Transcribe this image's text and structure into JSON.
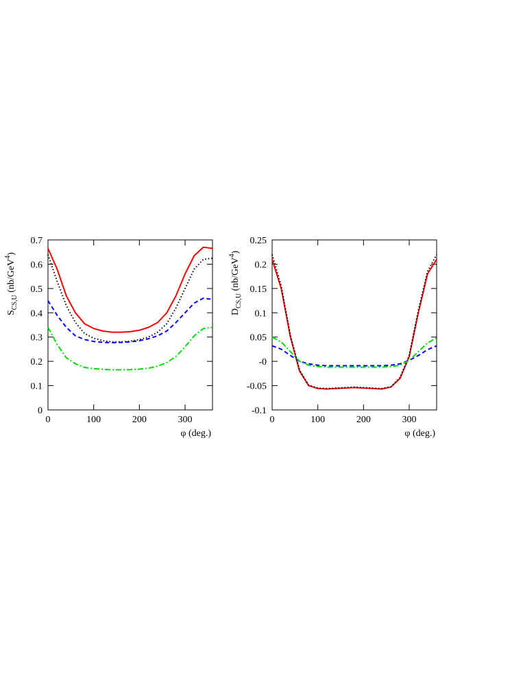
{
  "chart_data": [
    {
      "type": "line",
      "ylabel": {
        "main": "S",
        "sub": "CS,U",
        "text": " (nb/GeV",
        "sup": "4",
        "end": ")"
      },
      "xlabel": "φ (deg.)",
      "x": [
        0,
        20,
        40,
        60,
        80,
        100,
        120,
        140,
        160,
        180,
        200,
        220,
        240,
        260,
        280,
        300,
        320,
        340,
        360
      ],
      "series": [
        {
          "color": "#ff0000",
          "dash": "solid",
          "values": [
            0.665,
            0.58,
            0.47,
            0.4,
            0.355,
            0.335,
            0.325,
            0.32,
            0.32,
            0.322,
            0.328,
            0.34,
            0.36,
            0.4,
            0.47,
            0.56,
            0.635,
            0.67,
            0.665
          ]
        },
        {
          "color": "#000000",
          "dash": "dotted",
          "values": [
            0.64,
            0.53,
            0.43,
            0.36,
            0.315,
            0.295,
            0.285,
            0.28,
            0.28,
            0.283,
            0.29,
            0.3,
            0.32,
            0.355,
            0.42,
            0.5,
            0.58,
            0.62,
            0.625
          ]
        },
        {
          "color": "#0000ff",
          "dash": "dashed",
          "values": [
            0.45,
            0.39,
            0.34,
            0.305,
            0.29,
            0.282,
            0.278,
            0.277,
            0.278,
            0.28,
            0.285,
            0.293,
            0.305,
            0.325,
            0.36,
            0.4,
            0.44,
            0.46,
            0.455
          ]
        },
        {
          "color": "#00dd00",
          "dash": "dashdot",
          "values": [
            0.34,
            0.27,
            0.215,
            0.19,
            0.175,
            0.17,
            0.167,
            0.165,
            0.165,
            0.166,
            0.168,
            0.172,
            0.18,
            0.195,
            0.22,
            0.26,
            0.305,
            0.335,
            0.34
          ]
        }
      ],
      "xlim": [
        0,
        360
      ],
      "xticks": [
        0,
        100,
        200,
        300
      ],
      "ylim": [
        0,
        0.7
      ],
      "yticks": [
        0,
        0.1,
        0.2,
        0.3,
        0.4,
        0.5,
        0.6,
        0.7
      ]
    },
    {
      "type": "line",
      "ylabel": {
        "main": "D",
        "sub": "CS,U",
        "text": " (nb/GeV",
        "sup": "4",
        "end": ")"
      },
      "xlabel": "φ (deg.)",
      "x": [
        0,
        20,
        40,
        60,
        80,
        100,
        120,
        140,
        160,
        180,
        200,
        220,
        240,
        260,
        280,
        300,
        320,
        340,
        360
      ],
      "series": [
        {
          "color": "#ff0000",
          "dash": "solid",
          "values": [
            0.21,
            0.15,
            0.05,
            -0.02,
            -0.05,
            -0.056,
            -0.057,
            -0.056,
            -0.055,
            -0.054,
            -0.055,
            -0.056,
            -0.057,
            -0.053,
            -0.035,
            0.01,
            0.1,
            0.18,
            0.21
          ]
        },
        {
          "color": "#000000",
          "dash": "dotted",
          "values": [
            0.22,
            0.155,
            0.053,
            -0.018,
            -0.049,
            -0.055,
            -0.056,
            -0.055,
            -0.054,
            -0.053,
            -0.054,
            -0.055,
            -0.056,
            -0.052,
            -0.033,
            0.012,
            0.105,
            0.185,
            0.22
          ]
        },
        {
          "color": "#0000ff",
          "dash": "dashed",
          "values": [
            0.032,
            0.025,
            0.012,
            0.0,
            -0.005,
            -0.008,
            -0.009,
            -0.009,
            -0.009,
            -0.009,
            -0.009,
            -0.009,
            -0.009,
            -0.008,
            -0.005,
            0.002,
            0.012,
            0.024,
            0.032
          ]
        },
        {
          "color": "#00dd00",
          "dash": "dashdot",
          "values": [
            0.05,
            0.04,
            0.02,
            0.0,
            -0.008,
            -0.011,
            -0.012,
            -0.012,
            -0.012,
            -0.012,
            -0.012,
            -0.012,
            -0.012,
            -0.011,
            -0.008,
            0.002,
            0.02,
            0.038,
            0.048
          ]
        }
      ],
      "xlim": [
        0,
        360
      ],
      "xticks": [
        0,
        100,
        200,
        300
      ],
      "ylim": [
        -0.1,
        0.25
      ],
      "yticks": [
        -0.1,
        -0.05,
        {
          "value": 0,
          "label": "-0"
        },
        0.05,
        0.1,
        0.15,
        0.2,
        0.25
      ]
    }
  ]
}
